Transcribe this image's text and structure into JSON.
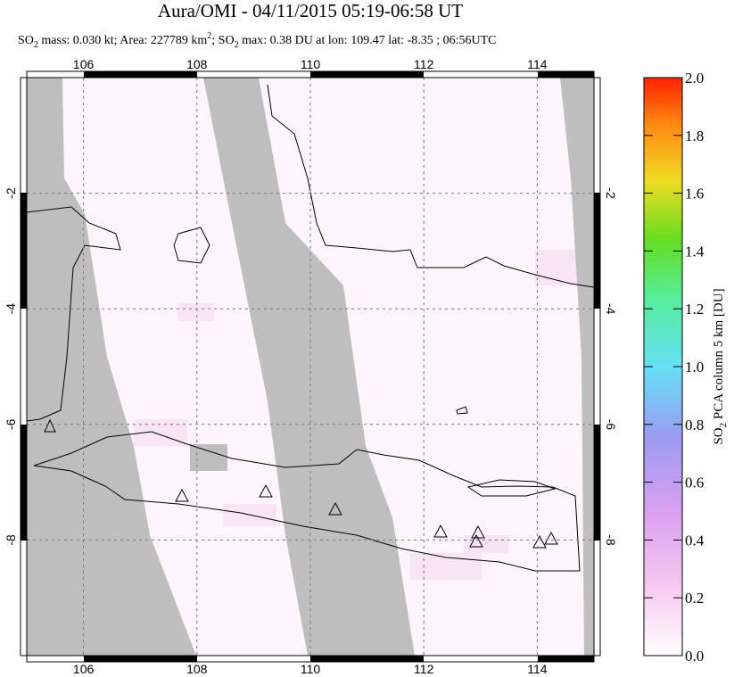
{
  "header": {
    "title": "Aura/OMI - 04/11/2015 05:19-06:58 UT",
    "subtitle": [
      "SO",
      "2",
      " mass: 0.030 kt; Area: 227789 km",
      "2",
      "; SO",
      "2",
      " max: 0.38 DU at lon: 109.47 lat: -8.35 ; 06:56UTC"
    ]
  },
  "map": {
    "lon_range": [
      105,
      115
    ],
    "lat_range": [
      -10,
      0
    ],
    "xticks": [
      106,
      108,
      110,
      112,
      114
    ],
    "yticks": [
      -2,
      -4,
      -6,
      -8
    ]
  },
  "colorbar": {
    "label": [
      "SO",
      "2",
      " PCA column 5 km [DU]"
    ],
    "range": [
      0,
      2
    ],
    "ticks": [
      {
        "value": 0,
        "label": "0.0"
      },
      {
        "value": 0.2,
        "label": "0.2"
      },
      {
        "value": 0.4,
        "label": "0.4"
      },
      {
        "value": 0.6,
        "label": "0.6"
      },
      {
        "value": 0.8,
        "label": "0.8"
      },
      {
        "value": 1,
        "label": "1.0"
      },
      {
        "value": 1.2,
        "label": "1.2"
      },
      {
        "value": 1.4,
        "label": "1.4"
      },
      {
        "value": 1.6,
        "label": "1.6"
      },
      {
        "value": 1.8,
        "label": "1.8"
      },
      {
        "value": 2,
        "label": "2.0"
      }
    ]
  }
}
